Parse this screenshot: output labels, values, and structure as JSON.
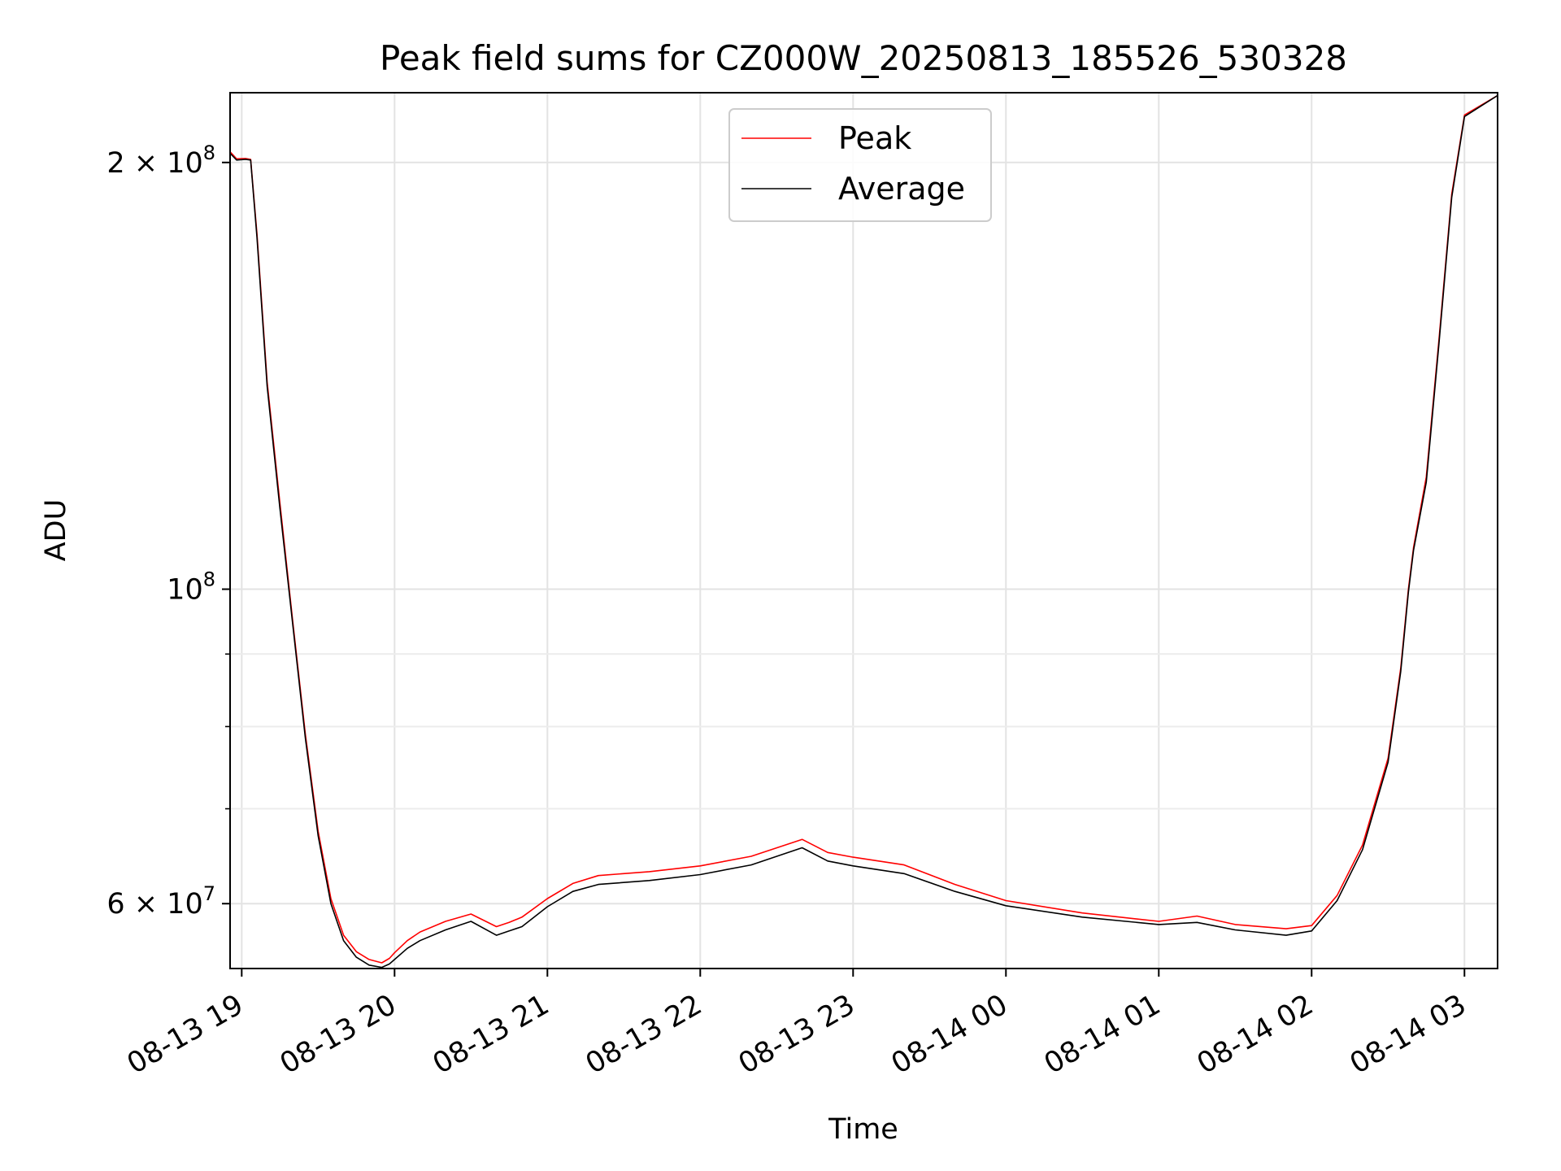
{
  "chart_data": {
    "type": "line",
    "title": "Peak field sums for CZ000W_20250813_185526_530328",
    "xlabel": "Time",
    "ylabel": "ADU",
    "xlim": [
      "2025-08-13 18:55:26",
      "2025-08-14 03:13:00"
    ],
    "ylim": [
      54000000,
      224000000
    ],
    "yscale": "log",
    "grid": true,
    "legend": "top-center",
    "x_ticks": [
      {
        "value": "2025-08-13 19:00",
        "label": "08-13 19"
      },
      {
        "value": "2025-08-13 20:00",
        "label": "08-13 20"
      },
      {
        "value": "2025-08-13 21:00",
        "label": "08-13 21"
      },
      {
        "value": "2025-08-13 22:00",
        "label": "08-13 22"
      },
      {
        "value": "2025-08-13 23:00",
        "label": "08-13 23"
      },
      {
        "value": "2025-08-14 00:00",
        "label": "08-14 00"
      },
      {
        "value": "2025-08-14 01:00",
        "label": "08-14 01"
      },
      {
        "value": "2025-08-14 02:00",
        "label": "08-14 02"
      },
      {
        "value": "2025-08-14 03:00",
        "label": "08-14 03"
      }
    ],
    "y_ticks": [
      {
        "value": 60000000,
        "base": "6 × 10",
        "exp": "7"
      },
      {
        "value": 100000000,
        "base": "10",
        "exp": "8"
      },
      {
        "value": 200000000,
        "base": "2 × 10",
        "exp": "8"
      }
    ],
    "y_minor_ticks": [
      70000000,
      80000000,
      90000000
    ],
    "x": [
      "2025-08-13 18:55:26",
      "2025-08-13 18:58:00",
      "2025-08-13 19:01:30",
      "2025-08-13 19:03:30",
      "2025-08-13 19:06:00",
      "2025-08-13 19:10:00",
      "2025-08-13 19:15:00",
      "2025-08-13 19:20:00",
      "2025-08-13 19:25:00",
      "2025-08-13 19:30:00",
      "2025-08-13 19:35:00",
      "2025-08-13 19:40:00",
      "2025-08-13 19:45:00",
      "2025-08-13 19:50:00",
      "2025-08-13 19:55:00",
      "2025-08-13 19:58:00",
      "2025-08-13 20:00:00",
      "2025-08-13 20:05:00",
      "2025-08-13 20:10:00",
      "2025-08-13 20:20:00",
      "2025-08-13 20:30:00",
      "2025-08-13 20:40:00",
      "2025-08-13 20:45:00",
      "2025-08-13 20:50:00",
      "2025-08-13 21:00:00",
      "2025-08-13 21:10:00",
      "2025-08-13 21:20:00",
      "2025-08-13 21:40:00",
      "2025-08-13 22:00:00",
      "2025-08-13 22:20:00",
      "2025-08-13 22:40:00",
      "2025-08-13 22:50:00",
      "2025-08-13 23:00:00",
      "2025-08-13 23:20:00",
      "2025-08-13 23:40:00",
      "2025-08-14 00:00:00",
      "2025-08-14 00:30:00",
      "2025-08-14 01:00:00",
      "2025-08-14 01:15:00",
      "2025-08-14 01:30:00",
      "2025-08-14 01:50:00",
      "2025-08-14 02:00:00",
      "2025-08-14 02:10:00",
      "2025-08-14 02:20:00",
      "2025-08-14 02:30:00",
      "2025-08-14 02:35:00",
      "2025-08-14 02:38:00",
      "2025-08-14 02:40:00",
      "2025-08-14 02:45:00",
      "2025-08-14 02:50:00",
      "2025-08-14 02:55:00",
      "2025-08-14 03:00:00",
      "2025-08-14 03:13:00"
    ],
    "series": [
      {
        "name": "Peak",
        "color": "#ff0000",
        "values": [
          203500000,
          201200000,
          201300000,
          201000000,
          178000000,
          140000000,
          115000000,
          95000000,
          79000000,
          67500000,
          60500000,
          57000000,
          55500000,
          54800000,
          54500000,
          54900000,
          55400000,
          56500000,
          57300000,
          58300000,
          59000000,
          57800000,
          58200000,
          58700000,
          60500000,
          62000000,
          62800000,
          63200000,
          63800000,
          64800000,
          66600000,
          65200000,
          64700000,
          63900000,
          61900000,
          60300000,
          59100000,
          58300000,
          58800000,
          58000000,
          57600000,
          57900000,
          60800000,
          66000000,
          76000000,
          88000000,
          100000000,
          107000000,
          120000000,
          150000000,
          190000000,
          216000000,
          223000000
        ]
      },
      {
        "name": "Average",
        "color": "#000000",
        "values": [
          203000000,
          200800000,
          201000000,
          200800000,
          177000000,
          139000000,
          114000000,
          94500000,
          78500000,
          67000000,
          60000000,
          56500000,
          55000000,
          54300000,
          54100000,
          54400000,
          54800000,
          55800000,
          56500000,
          57500000,
          58300000,
          57000000,
          57400000,
          57800000,
          59700000,
          61200000,
          61900000,
          62300000,
          62900000,
          63900000,
          65700000,
          64300000,
          63800000,
          63000000,
          61200000,
          59800000,
          58700000,
          58000000,
          58200000,
          57500000,
          57000000,
          57400000,
          60300000,
          65500000,
          75500000,
          87500000,
          99500000,
          106500000,
          119000000,
          149000000,
          189000000,
          215500000,
          223000000
        ]
      }
    ]
  }
}
